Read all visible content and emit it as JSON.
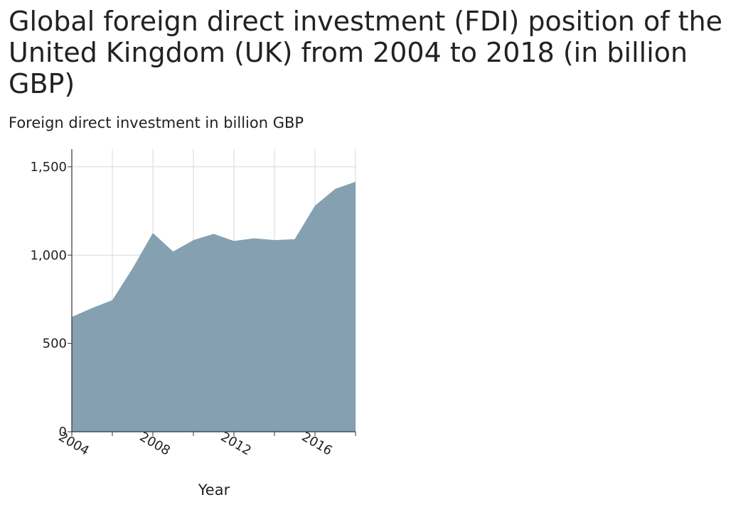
{
  "chart_data": {
    "type": "area",
    "title": "Global foreign direct investment (FDI) position of the United Kingdom (UK) from 2004 to 2018 (in billion GBP)",
    "ylabel": "Foreign direct investment in billion GBP",
    "xlabel": "Year",
    "x": [
      2004,
      2005,
      2006,
      2007,
      2008,
      2009,
      2010,
      2011,
      2012,
      2013,
      2014,
      2015,
      2016,
      2017,
      2018
    ],
    "series": [
      {
        "values": [
          650,
          700,
          745,
          925,
          1125,
          1020,
          1085,
          1120,
          1080,
          1095,
          1085,
          1090,
          1280,
          1375,
          1415
        ],
        "color": "#84a0b1"
      }
    ],
    "xlim": [
      2004,
      2018
    ],
    "ylim": [
      0,
      1600
    ],
    "xticks": [
      2004,
      2008,
      2012,
      2016
    ],
    "xtick_labels": [
      "2004",
      "2008",
      "2012",
      "2016"
    ],
    "yticks": [
      0,
      500,
      1000,
      1500
    ],
    "ytick_labels": [
      "0",
      "500",
      "1,000",
      "1,500"
    ],
    "grid": true,
    "legend": "none"
  }
}
